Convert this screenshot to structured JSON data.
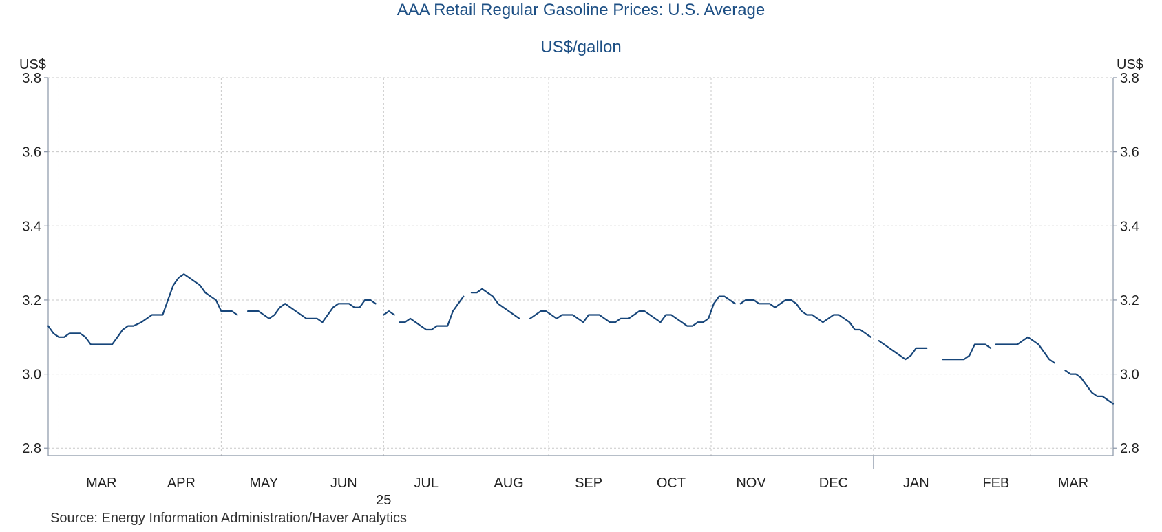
{
  "chart_data": {
    "type": "line",
    "title": "AAA Retail Regular Gasoline Prices: U.S. Average",
    "subtitle": "US$/gallon",
    "ylabel_left": "US$",
    "ylabel_right": "US$",
    "ylim": [
      2.78,
      3.8
    ],
    "yticks": [
      "3.8",
      "3.6",
      "3.4",
      "3.2",
      "3.0",
      "2.8"
    ],
    "grid": true,
    "source": "Source:  Energy Information Administration/Haver Analytics",
    "x_range": [
      "2025-02-24",
      "2026-03-31"
    ],
    "month_labels": [
      {
        "label": "MAR",
        "date": "2025-03-16"
      },
      {
        "label": "APR",
        "date": "2025-04-15"
      },
      {
        "label": "MAY",
        "date": "2025-05-16"
      },
      {
        "label": "JUN",
        "date": "2025-06-15"
      },
      {
        "label": "JUL",
        "date": "2025-07-16"
      },
      {
        "label": "AUG",
        "date": "2025-08-16"
      },
      {
        "label": "SEP",
        "date": "2025-09-15"
      },
      {
        "label": "OCT",
        "date": "2025-10-16"
      },
      {
        "label": "NOV",
        "date": "2025-11-15"
      },
      {
        "label": "DEC",
        "date": "2025-12-16"
      },
      {
        "label": "JAN",
        "date": "2026-01-16"
      },
      {
        "label": "FEB",
        "date": "2026-02-15"
      },
      {
        "label": "MAR",
        "date": "2026-03-16"
      }
    ],
    "year_labels": [
      {
        "label": "25",
        "date": "2025-06-30"
      }
    ],
    "vertical_gridlines": [
      "2025-02-28",
      "2025-04-30",
      "2025-06-30",
      "2025-08-31",
      "2025-10-31",
      "2025-12-31",
      "2026-02-28"
    ],
    "year_divider": "2025-12-31",
    "series": [
      {
        "color": "#17467a",
        "segments": [
          [
            [
              "2025-02-24",
              3.13
            ],
            [
              "2025-02-26",
              3.11
            ],
            [
              "2025-02-28",
              3.1
            ],
            [
              "2025-03-02",
              3.1
            ],
            [
              "2025-03-04",
              3.11
            ],
            [
              "2025-03-06",
              3.11
            ],
            [
              "2025-03-08",
              3.11
            ],
            [
              "2025-03-10",
              3.1
            ],
            [
              "2025-03-12",
              3.08
            ],
            [
              "2025-03-16",
              3.08
            ],
            [
              "2025-03-20",
              3.08
            ],
            [
              "2025-03-22",
              3.1
            ],
            [
              "2025-03-24",
              3.12
            ],
            [
              "2025-03-26",
              3.13
            ],
            [
              "2025-03-28",
              3.13
            ],
            [
              "2025-03-31",
              3.14
            ],
            [
              "2025-04-02",
              3.15
            ],
            [
              "2025-04-04",
              3.16
            ],
            [
              "2025-04-06",
              3.16
            ],
            [
              "2025-04-08",
              3.16
            ],
            [
              "2025-04-10",
              3.2
            ],
            [
              "2025-04-12",
              3.24
            ],
            [
              "2025-04-14",
              3.26
            ],
            [
              "2025-04-16",
              3.27
            ],
            [
              "2025-04-18",
              3.26
            ],
            [
              "2025-04-20",
              3.25
            ],
            [
              "2025-04-22",
              3.24
            ],
            [
              "2025-04-24",
              3.22
            ],
            [
              "2025-04-26",
              3.21
            ],
            [
              "2025-04-28",
              3.2
            ],
            [
              "2025-04-30",
              3.17
            ],
            [
              "2025-05-02",
              3.17
            ],
            [
              "2025-05-04",
              3.17
            ],
            [
              "2025-05-06",
              3.16
            ]
          ],
          [
            [
              "2025-05-10",
              3.17
            ],
            [
              "2025-05-14",
              3.17
            ],
            [
              "2025-05-16",
              3.16
            ],
            [
              "2025-05-18",
              3.15
            ],
            [
              "2025-05-20",
              3.16
            ],
            [
              "2025-05-22",
              3.18
            ],
            [
              "2025-05-24",
              3.19
            ],
            [
              "2025-05-26",
              3.18
            ],
            [
              "2025-05-28",
              3.17
            ],
            [
              "2025-05-30",
              3.16
            ],
            [
              "2025-06-01",
              3.15
            ],
            [
              "2025-06-05",
              3.15
            ],
            [
              "2025-06-07",
              3.14
            ],
            [
              "2025-06-09",
              3.16
            ],
            [
              "2025-06-11",
              3.18
            ],
            [
              "2025-06-13",
              3.19
            ],
            [
              "2025-06-17",
              3.19
            ],
            [
              "2025-06-19",
              3.18
            ],
            [
              "2025-06-21",
              3.18
            ],
            [
              "2025-06-23",
              3.2
            ],
            [
              "2025-06-25",
              3.2
            ],
            [
              "2025-06-27",
              3.19
            ]
          ],
          [
            [
              "2025-06-30",
              3.16
            ],
            [
              "2025-07-02",
              3.17
            ],
            [
              "2025-07-04",
              3.16
            ]
          ],
          [
            [
              "2025-07-06",
              3.14
            ],
            [
              "2025-07-08",
              3.14
            ],
            [
              "2025-07-10",
              3.15
            ],
            [
              "2025-07-12",
              3.14
            ],
            [
              "2025-07-14",
              3.13
            ],
            [
              "2025-07-16",
              3.12
            ],
            [
              "2025-07-18",
              3.12
            ],
            [
              "2025-07-20",
              3.13
            ],
            [
              "2025-07-24",
              3.13
            ],
            [
              "2025-07-26",
              3.17
            ],
            [
              "2025-07-28",
              3.19
            ],
            [
              "2025-07-30",
              3.21
            ]
          ],
          [
            [
              "2025-08-02",
              3.22
            ],
            [
              "2025-08-04",
              3.22
            ],
            [
              "2025-08-06",
              3.23
            ],
            [
              "2025-08-08",
              3.22
            ],
            [
              "2025-08-10",
              3.21
            ],
            [
              "2025-08-12",
              3.19
            ],
            [
              "2025-08-14",
              3.18
            ],
            [
              "2025-08-16",
              3.17
            ],
            [
              "2025-08-18",
              3.16
            ],
            [
              "2025-08-20",
              3.15
            ]
          ],
          [
            [
              "2025-08-24",
              3.15
            ],
            [
              "2025-08-26",
              3.16
            ],
            [
              "2025-08-28",
              3.17
            ],
            [
              "2025-08-30",
              3.17
            ],
            [
              "2025-09-01",
              3.16
            ],
            [
              "2025-09-03",
              3.15
            ],
            [
              "2025-09-05",
              3.16
            ],
            [
              "2025-09-07",
              3.16
            ],
            [
              "2025-09-09",
              3.16
            ],
            [
              "2025-09-11",
              3.15
            ],
            [
              "2025-09-13",
              3.14
            ],
            [
              "2025-09-15",
              3.16
            ],
            [
              "2025-09-19",
              3.16
            ],
            [
              "2025-09-21",
              3.15
            ],
            [
              "2025-09-23",
              3.14
            ],
            [
              "2025-09-25",
              3.14
            ],
            [
              "2025-09-27",
              3.15
            ],
            [
              "2025-09-30",
              3.15
            ],
            [
              "2025-10-02",
              3.16
            ],
            [
              "2025-10-04",
              3.17
            ],
            [
              "2025-10-06",
              3.17
            ],
            [
              "2025-10-08",
              3.16
            ],
            [
              "2025-10-10",
              3.15
            ],
            [
              "2025-10-12",
              3.14
            ],
            [
              "2025-10-14",
              3.16
            ],
            [
              "2025-10-16",
              3.16
            ],
            [
              "2025-10-18",
              3.15
            ],
            [
              "2025-10-20",
              3.14
            ],
            [
              "2025-10-22",
              3.13
            ],
            [
              "2025-10-24",
              3.13
            ],
            [
              "2025-10-26",
              3.14
            ],
            [
              "2025-10-28",
              3.14
            ],
            [
              "2025-10-30",
              3.15
            ],
            [
              "2025-11-01",
              3.19
            ],
            [
              "2025-11-03",
              3.21
            ],
            [
              "2025-11-05",
              3.21
            ],
            [
              "2025-11-07",
              3.2
            ],
            [
              "2025-11-09",
              3.19
            ]
          ],
          [
            [
              "2025-11-11",
              3.19
            ],
            [
              "2025-11-13",
              3.2
            ],
            [
              "2025-11-16",
              3.2
            ],
            [
              "2025-11-18",
              3.19
            ],
            [
              "2025-11-22",
              3.19
            ],
            [
              "2025-11-24",
              3.18
            ],
            [
              "2025-11-26",
              3.19
            ],
            [
              "2025-11-28",
              3.2
            ],
            [
              "2025-11-30",
              3.2
            ],
            [
              "2025-12-02",
              3.19
            ],
            [
              "2025-12-04",
              3.17
            ],
            [
              "2025-12-06",
              3.16
            ],
            [
              "2025-12-08",
              3.16
            ],
            [
              "2025-12-10",
              3.15
            ],
            [
              "2025-12-12",
              3.14
            ],
            [
              "2025-12-14",
              3.15
            ],
            [
              "2025-12-16",
              3.16
            ],
            [
              "2025-12-18",
              3.16
            ],
            [
              "2025-12-20",
              3.15
            ],
            [
              "2025-12-22",
              3.14
            ],
            [
              "2025-12-24",
              3.12
            ],
            [
              "2025-12-26",
              3.12
            ],
            [
              "2025-12-28",
              3.11
            ],
            [
              "2025-12-30",
              3.1
            ]
          ],
          [
            [
              "2026-01-02",
              3.09
            ],
            [
              "2026-01-04",
              3.08
            ],
            [
              "2026-01-06",
              3.07
            ],
            [
              "2026-01-08",
              3.06
            ],
            [
              "2026-01-10",
              3.05
            ],
            [
              "2026-01-12",
              3.04
            ],
            [
              "2026-01-14",
              3.05
            ],
            [
              "2026-01-16",
              3.07
            ],
            [
              "2026-01-20",
              3.07
            ]
          ],
          [
            [
              "2026-01-26",
              3.04
            ],
            [
              "2026-01-30",
              3.04
            ],
            [
              "2026-02-03",
              3.04
            ],
            [
              "2026-02-05",
              3.05
            ],
            [
              "2026-02-07",
              3.08
            ],
            [
              "2026-02-11",
              3.08
            ],
            [
              "2026-02-13",
              3.07
            ]
          ],
          [
            [
              "2026-02-15",
              3.08
            ],
            [
              "2026-02-19",
              3.08
            ],
            [
              "2026-02-23",
              3.08
            ],
            [
              "2026-02-25",
              3.09
            ],
            [
              "2026-02-27",
              3.1
            ],
            [
              "2026-03-01",
              3.09
            ],
            [
              "2026-03-03",
              3.08
            ],
            [
              "2026-03-05",
              3.06
            ],
            [
              "2026-03-07",
              3.04
            ],
            [
              "2026-03-09",
              3.03
            ]
          ],
          [
            [
              "2026-03-13",
              3.01
            ],
            [
              "2026-03-15",
              3.0
            ],
            [
              "2026-03-17",
              3.0
            ],
            [
              "2026-03-19",
              2.99
            ],
            [
              "2026-03-21",
              2.97
            ],
            [
              "2026-03-23",
              2.95
            ],
            [
              "2026-03-25",
              2.94
            ],
            [
              "2026-03-27",
              2.94
            ],
            [
              "2026-03-29",
              2.93
            ],
            [
              "2026-03-31",
              2.92
            ]
          ]
        ]
      }
    ]
  }
}
